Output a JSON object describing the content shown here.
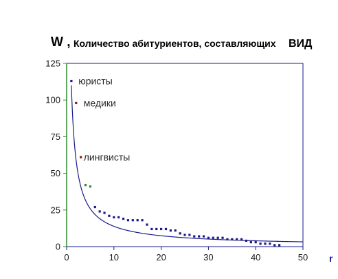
{
  "chart_data": {
    "type": "scatter",
    "title": {
      "symbol": "W ,",
      "text": "Количество  абитуриентов, составляющих",
      "suffix": "ВИД"
    },
    "xlabel": "r",
    "ylabel": "",
    "xlim": [
      0,
      50
    ],
    "ylim": [
      0,
      125
    ],
    "x_ticks": [
      0,
      10,
      20,
      30,
      40,
      50
    ],
    "y_ticks": [
      0,
      25,
      50,
      75,
      100,
      125
    ],
    "grid": false,
    "legend": "none",
    "colors": {
      "frame": "#1a1a8c",
      "y_axis": "#2e8b2e",
      "curve": "#1a1a8c",
      "points": "#1a1a8c",
      "medics": "#8b1a1a",
      "linguists": "#8b1a1a",
      "green_points": "#2e8b2e"
    },
    "series": [
      {
        "name": "",
        "kind": "points",
        "color_key": "points",
        "points": [
          [
            1,
            113
          ],
          [
            6,
            27
          ],
          [
            7,
            24
          ],
          [
            8,
            23
          ],
          [
            9,
            21
          ],
          [
            10,
            20
          ],
          [
            11,
            20
          ],
          [
            12,
            19
          ],
          [
            13,
            18
          ],
          [
            14,
            18
          ],
          [
            15,
            18
          ],
          [
            16,
            18
          ],
          [
            17,
            15
          ],
          [
            18,
            12
          ],
          [
            19,
            12
          ],
          [
            20,
            12
          ],
          [
            21,
            12
          ],
          [
            22,
            11
          ],
          [
            23,
            11
          ],
          [
            24,
            9
          ],
          [
            25,
            8
          ],
          [
            26,
            8
          ],
          [
            27,
            7
          ],
          [
            28,
            7
          ],
          [
            29,
            7
          ],
          [
            30,
            6
          ],
          [
            31,
            6
          ],
          [
            32,
            6
          ],
          [
            33,
            6
          ],
          [
            34,
            5
          ],
          [
            35,
            5
          ],
          [
            36,
            5
          ],
          [
            37,
            5
          ],
          [
            38,
            4
          ],
          [
            39,
            3
          ],
          [
            40,
            3
          ],
          [
            41,
            2
          ],
          [
            42,
            2
          ],
          [
            43,
            2
          ],
          [
            44,
            1
          ],
          [
            45,
            1
          ]
        ]
      },
      {
        "name": "",
        "kind": "points",
        "color_key": "medics",
        "points": [
          [
            2,
            98
          ]
        ]
      },
      {
        "name": "",
        "kind": "points",
        "color_key": "linguists",
        "points": [
          [
            3,
            61
          ]
        ]
      },
      {
        "name": "",
        "kind": "points",
        "color_key": "green_points",
        "points": [
          [
            4,
            42
          ],
          [
            5,
            41
          ]
        ]
      },
      {
        "name": "",
        "kind": "curve",
        "color_key": "curve",
        "formula": "W = 110 / r^0.9",
        "coefficient": 110,
        "exponent": 0.9,
        "x_range": [
          1,
          50
        ]
      }
    ],
    "annotations": [
      {
        "text": "юристы",
        "x": 2.5,
        "y": 113
      },
      {
        "text": "медики",
        "x": 3.6,
        "y": 98
      },
      {
        "text": "лингвисты",
        "x": 3.6,
        "y": 61
      }
    ]
  }
}
